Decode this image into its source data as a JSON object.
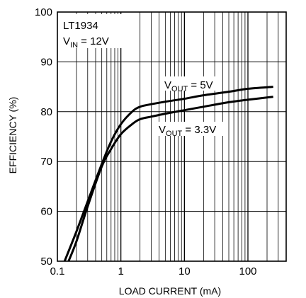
{
  "chart_data": {
    "type": "line",
    "xlabel": "LOAD CURRENT (mA)",
    "ylabel": "EFFICIENCY (%)",
    "x_scale": "log",
    "xlim": [
      0.1,
      400
    ],
    "ylim": [
      50,
      100
    ],
    "grid": true,
    "x_tick_labels": [
      "0.1",
      "1",
      "10",
      "100"
    ],
    "y_tick_labels": [
      "50",
      "60",
      "70",
      "80",
      "90",
      "100"
    ],
    "condition_box": {
      "line1": "LT1934",
      "line2_main": "V",
      "line2_sub": "IN",
      "line2_rest": " = 12V"
    },
    "series": [
      {
        "label_main": "V",
        "label_sub": "OUT",
        "label_rest": " = 5V",
        "x": [
          0.13,
          0.2,
          0.3,
          0.5,
          0.7,
          1.0,
          1.5,
          2,
          3,
          5,
          10,
          20,
          50,
          100,
          250
        ],
        "y": [
          50,
          56,
          62,
          69.5,
          74,
          77.5,
          80,
          81,
          81.5,
          82,
          82.6,
          83.3,
          84,
          84.6,
          85
        ]
      },
      {
        "label_main": "V",
        "label_sub": "OUT",
        "label_rest": " = 3.3V",
        "x": [
          0.15,
          0.2,
          0.3,
          0.5,
          0.7,
          1.0,
          1.5,
          2,
          3,
          5,
          10,
          20,
          50,
          100,
          250
        ],
        "y": [
          50,
          54,
          61,
          69,
          72.5,
          75.5,
          77.5,
          78.5,
          79,
          79.6,
          80.3,
          81,
          81.9,
          82.4,
          83
        ]
      }
    ]
  }
}
